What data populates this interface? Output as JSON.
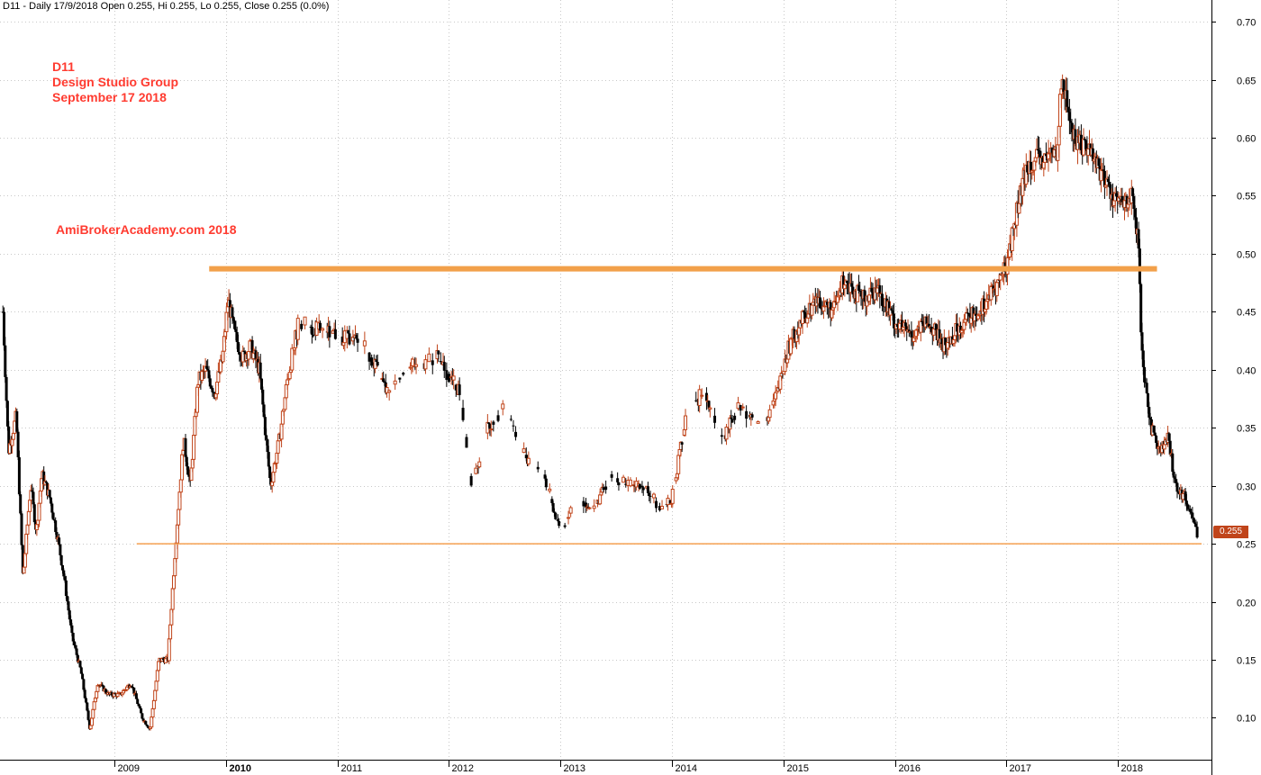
{
  "header_text": "D11 - Daily 17/9/2018 Open 0.255, Hi 0.255, Lo 0.255, Close 0.255 (0.0%)",
  "annotations": {
    "ticker": "D11",
    "company": "Design Studio Group",
    "date": "September 17 2018",
    "watermark": "AmiBrokerAcademy.com   2018"
  },
  "colors": {
    "up_candle": "#c0441a",
    "down_candle": "#000000",
    "resistance_line": "#f2a04a",
    "support_line": "#f5a050",
    "annotation_text": "#ff3b30",
    "grid": "#c8c8c8",
    "price_tag_bg": "#c0441a"
  },
  "chart_data": {
    "type": "candlestick",
    "title": "D11 - Daily 17/9/2018 Open 0.255, Hi 0.255, Lo 0.255, Close 0.255 (0.0%)",
    "x_tick_labels": [
      "2009",
      "2010",
      "2011",
      "2012",
      "2013",
      "2014",
      "2015",
      "2016",
      "2017",
      "2018"
    ],
    "y_tick_labels": [
      "0.10",
      "0.15",
      "0.20",
      "0.25",
      "0.30",
      "0.35",
      "0.40",
      "0.45",
      "0.50",
      "0.55",
      "0.60",
      "0.65",
      "0.70"
    ],
    "ylim": [
      0.06,
      0.725
    ],
    "xlim": [
      2008.0,
      2018.85
    ],
    "grid": true,
    "last_price_label": "0.255",
    "horizontal_lines": [
      {
        "role": "resistance",
        "y": 0.487,
        "x_start": 2009.85,
        "x_end": 2018.35,
        "weight": "thick"
      },
      {
        "role": "support",
        "y": 0.25,
        "x_start": 2009.2,
        "x_end": 2018.75,
        "weight": "thin"
      }
    ],
    "price_path": [
      [
        2008.0,
        0.45
      ],
      [
        2008.05,
        0.33
      ],
      [
        2008.12,
        0.36
      ],
      [
        2008.18,
        0.22
      ],
      [
        2008.25,
        0.3
      ],
      [
        2008.3,
        0.26
      ],
      [
        2008.35,
        0.31
      ],
      [
        2008.42,
        0.29
      ],
      [
        2008.5,
        0.25
      ],
      [
        2008.55,
        0.22
      ],
      [
        2008.62,
        0.17
      ],
      [
        2008.7,
        0.14
      ],
      [
        2008.78,
        0.09
      ],
      [
        2008.85,
        0.13
      ],
      [
        2008.95,
        0.12
      ],
      [
        2009.05,
        0.12
      ],
      [
        2009.15,
        0.13
      ],
      [
        2009.25,
        0.1
      ],
      [
        2009.32,
        0.09
      ],
      [
        2009.4,
        0.15
      ],
      [
        2009.48,
        0.15
      ],
      [
        2009.55,
        0.25
      ],
      [
        2009.62,
        0.34
      ],
      [
        2009.68,
        0.3
      ],
      [
        2009.75,
        0.39
      ],
      [
        2009.82,
        0.4
      ],
      [
        2009.9,
        0.38
      ],
      [
        2009.97,
        0.41
      ],
      [
        2010.02,
        0.46
      ],
      [
        2010.08,
        0.43
      ],
      [
        2010.15,
        0.41
      ],
      [
        2010.22,
        0.42
      ],
      [
        2010.3,
        0.4
      ],
      [
        2010.35,
        0.35
      ],
      [
        2010.4,
        0.3
      ],
      [
        2010.48,
        0.34
      ],
      [
        2010.55,
        0.39
      ],
      [
        2010.65,
        0.44
      ],
      [
        2011.0,
        0.43
      ],
      [
        2011.25,
        0.42
      ],
      [
        2011.45,
        0.38
      ],
      [
        2011.6,
        0.4
      ],
      [
        2011.9,
        0.41
      ],
      [
        2012.1,
        0.38
      ],
      [
        2012.2,
        0.3
      ],
      [
        2012.35,
        0.35
      ],
      [
        2012.5,
        0.37
      ],
      [
        2012.65,
        0.33
      ],
      [
        2012.85,
        0.31
      ],
      [
        2013.0,
        0.26
      ],
      [
        2013.15,
        0.29
      ],
      [
        2013.3,
        0.28
      ],
      [
        2013.45,
        0.31
      ],
      [
        2013.6,
        0.3
      ],
      [
        2013.75,
        0.3
      ],
      [
        2013.9,
        0.28
      ],
      [
        2014.0,
        0.29
      ],
      [
        2014.15,
        0.37
      ],
      [
        2014.3,
        0.38
      ],
      [
        2014.45,
        0.34
      ],
      [
        2014.6,
        0.37
      ],
      [
        2014.8,
        0.35
      ],
      [
        2014.95,
        0.38
      ],
      [
        2015.05,
        0.42
      ],
      [
        2015.15,
        0.44
      ],
      [
        2015.3,
        0.46
      ],
      [
        2015.45,
        0.45
      ],
      [
        2015.55,
        0.48
      ],
      [
        2015.7,
        0.46
      ],
      [
        2015.85,
        0.47
      ],
      [
        2016.0,
        0.44
      ],
      [
        2016.15,
        0.43
      ],
      [
        2016.3,
        0.44
      ],
      [
        2016.45,
        0.42
      ],
      [
        2016.6,
        0.44
      ],
      [
        2016.75,
        0.45
      ],
      [
        2016.9,
        0.47
      ],
      [
        2017.0,
        0.49
      ],
      [
        2017.1,
        0.54
      ],
      [
        2017.2,
        0.58
      ],
      [
        2017.35,
        0.58
      ],
      [
        2017.45,
        0.59
      ],
      [
        2017.5,
        0.65
      ],
      [
        2017.6,
        0.6
      ],
      [
        2017.75,
        0.59
      ],
      [
        2017.85,
        0.57
      ],
      [
        2017.95,
        0.55
      ],
      [
        2018.05,
        0.54
      ],
      [
        2018.12,
        0.55
      ],
      [
        2018.18,
        0.51
      ],
      [
        2018.22,
        0.4
      ],
      [
        2018.3,
        0.35
      ],
      [
        2018.38,
        0.33
      ],
      [
        2018.45,
        0.34
      ],
      [
        2018.52,
        0.3
      ],
      [
        2018.6,
        0.29
      ],
      [
        2018.68,
        0.27
      ],
      [
        2018.72,
        0.255
      ]
    ]
  }
}
